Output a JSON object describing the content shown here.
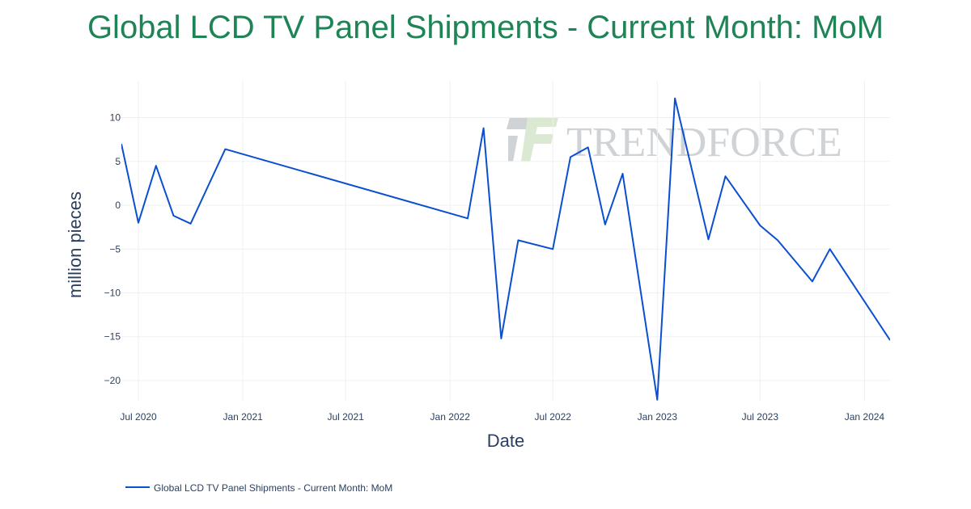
{
  "colors": {
    "title": "#1e8456",
    "line": "#0b4fd1",
    "grid": "#eef0f3",
    "text": "#2a3f5f",
    "watermark_gray": "#cfd3d6",
    "watermark_green": "#dbe8d2"
  },
  "watermark": {
    "text": "TRENDFORCE",
    "logo_icon": "trendforce-logo-icon"
  },
  "chart_data": {
    "type": "line",
    "title": "Global LCD TV Panel Shipments - Current Month: MoM",
    "xlabel": "Date",
    "ylabel": "million pieces",
    "ylim": [
      -22.4,
      14.2
    ],
    "xlim": [
      "2020-06-01",
      "2024-02-15"
    ],
    "grid": true,
    "legend_position": "bottom-left",
    "x_ticks": [
      {
        "date": "2020-07-01",
        "label": "Jul 2020"
      },
      {
        "date": "2021-01-01",
        "label": "Jan 2021"
      },
      {
        "date": "2021-07-01",
        "label": "Jul 2021"
      },
      {
        "date": "2022-01-01",
        "label": "Jan 2022"
      },
      {
        "date": "2022-07-01",
        "label": "Jul 2022"
      },
      {
        "date": "2023-01-01",
        "label": "Jan 2023"
      },
      {
        "date": "2023-07-01",
        "label": "Jul 2023"
      },
      {
        "date": "2024-01-01",
        "label": "Jan 2024"
      }
    ],
    "y_ticks": [
      {
        "value": 10,
        "label": "10"
      },
      {
        "value": 5,
        "label": "5"
      },
      {
        "value": 0,
        "label": "0"
      },
      {
        "value": -5,
        "label": "−5"
      },
      {
        "value": -10,
        "label": "−10"
      },
      {
        "value": -15,
        "label": "−15"
      },
      {
        "value": -20,
        "label": "−20"
      }
    ],
    "series": [
      {
        "name": "Global LCD TV Panel Shipments - Current Month: MoM",
        "x": [
          "2020-06-01",
          "2020-07-01",
          "2020-08-01",
          "2020-09-01",
          "2020-10-01",
          "2020-12-01",
          "2022-02-01",
          "2022-03-01",
          "2022-04-01",
          "2022-05-01",
          "2022-07-01",
          "2022-08-01",
          "2022-09-01",
          "2022-10-01",
          "2022-11-01",
          "2023-01-01",
          "2023-02-01",
          "2023-04-01",
          "2023-05-01",
          "2023-07-01",
          "2023-08-01",
          "2023-10-01",
          "2023-11-01",
          "2024-02-15"
        ],
        "values": [
          7.0,
          -2.0,
          4.5,
          -1.2,
          -2.1,
          6.4,
          -1.5,
          8.8,
          -15.2,
          -4.0,
          -5.0,
          5.5,
          6.6,
          -2.2,
          3.6,
          -22.2,
          12.2,
          -3.9,
          3.3,
          -2.3,
          -4.0,
          -8.7,
          -5.0,
          -15.4
        ]
      }
    ]
  }
}
